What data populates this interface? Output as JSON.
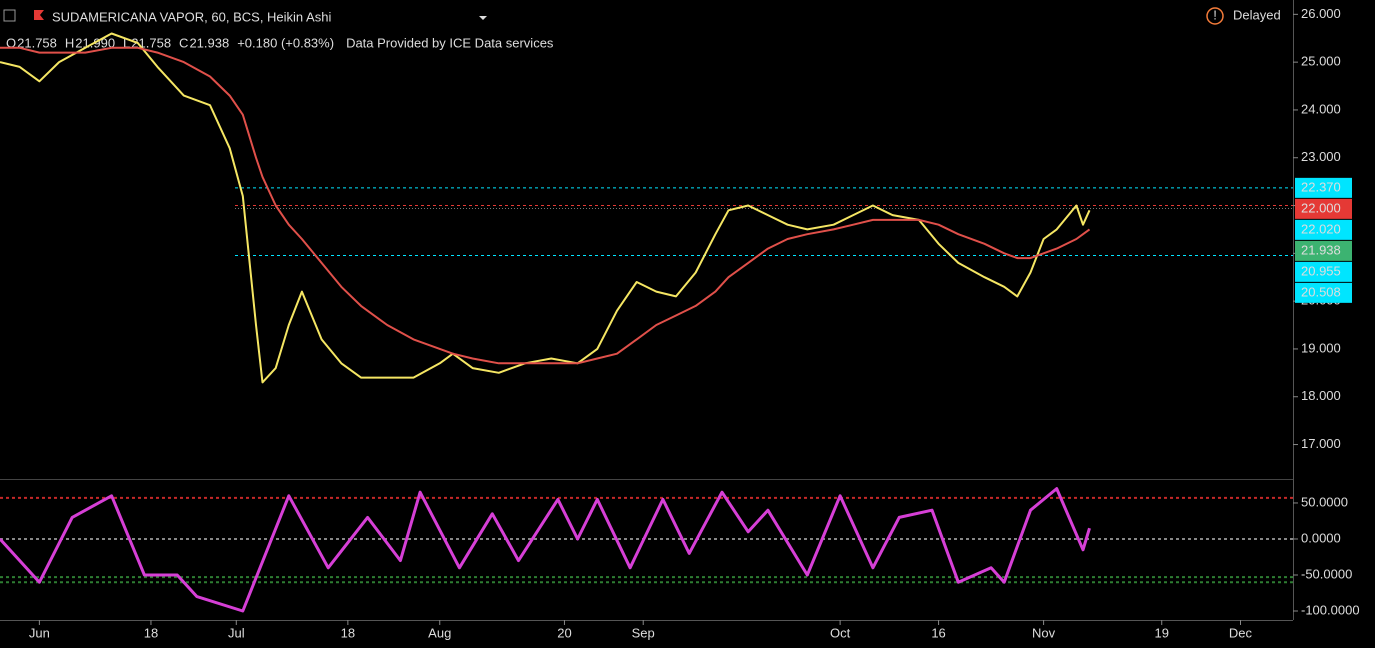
{
  "header": {
    "title": "SUDAMERICANA VAPOR, 60, BCS, Heikin Ashi",
    "ohlc": [
      {
        "key": "O",
        "value": "21.758"
      },
      {
        "key": "H",
        "value": "21.990"
      },
      {
        "key": "L",
        "value": "21.758"
      },
      {
        "key": "C",
        "value": "21.938"
      }
    ],
    "change": "+0.180 (+0.83%)",
    "source": "Data Provided by ICE Data services",
    "status": "Delayed"
  },
  "chart_data": [
    {
      "type": "line",
      "xlim": [
        -6,
        191
      ],
      "ylim": [
        16.3,
        26.3
      ],
      "xticks": [
        {
          "value": 0,
          "label": "Jun"
        },
        {
          "value": 17,
          "label": "18"
        },
        {
          "value": 30,
          "label": "Jul"
        },
        {
          "value": 47,
          "label": "18"
        },
        {
          "value": 61,
          "label": "Aug"
        },
        {
          "value": 80,
          "label": "20"
        },
        {
          "value": 92,
          "label": "Sep"
        },
        {
          "value": 122,
          "label": "Oct"
        },
        {
          "value": 137,
          "label": "16"
        },
        {
          "value": 153,
          "label": "Nov"
        },
        {
          "value": 171,
          "label": "19"
        },
        {
          "value": 183,
          "label": "Dec"
        }
      ],
      "yticks": [
        {
          "value": 17,
          "label": "17.000"
        },
        {
          "value": 18,
          "label": "18.000"
        },
        {
          "value": 19,
          "label": "19.000"
        },
        {
          "value": 20,
          "label": "20.000"
        },
        {
          "value": 21,
          "label": "21.000"
        },
        {
          "value": 22,
          "label": "22.000"
        },
        {
          "value": 23,
          "label": "23.000"
        },
        {
          "value": 24,
          "label": "24.000"
        },
        {
          "value": 25,
          "label": "25.000"
        },
        {
          "value": 26,
          "label": "26.000"
        }
      ],
      "x": [
        -6,
        -3,
        0,
        3,
        7,
        11,
        15,
        18,
        22,
        26,
        29,
        31,
        33,
        34,
        36,
        38,
        40,
        43,
        46,
        49,
        53,
        57,
        61,
        63,
        66,
        70,
        74,
        78,
        82,
        85,
        88,
        91,
        94,
        97,
        100,
        103,
        105,
        108,
        111,
        114,
        117,
        121,
        124,
        127,
        130,
        134,
        137,
        140,
        144,
        147,
        149,
        151,
        153,
        155,
        158,
        159,
        160
      ],
      "series": [
        {
          "color": "#f5e663",
          "values": [
            25.0,
            24.9,
            24.6,
            25.0,
            25.3,
            25.6,
            25.4,
            24.9,
            24.3,
            24.1,
            23.2,
            22.2,
            19.5,
            18.3,
            18.6,
            19.5,
            20.2,
            19.2,
            18.7,
            18.4,
            18.4,
            18.4,
            18.7,
            18.9,
            18.6,
            18.5,
            18.7,
            18.8,
            18.7,
            19.0,
            19.8,
            20.4,
            20.2,
            20.1,
            20.6,
            21.4,
            21.9,
            22.0,
            21.8,
            21.6,
            21.5,
            21.6,
            21.8,
            22.0,
            21.8,
            21.7,
            21.2,
            20.8,
            20.5,
            20.3,
            20.1,
            20.6,
            21.3,
            21.5,
            22.0,
            21.6,
            21.9
          ]
        },
        {
          "color": "#e0504a",
          "values": [
            25.3,
            25.3,
            25.2,
            25.2,
            25.2,
            25.3,
            25.3,
            25.2,
            25.0,
            24.7,
            24.3,
            23.9,
            23.0,
            22.6,
            22.0,
            21.6,
            21.3,
            20.8,
            20.3,
            19.9,
            19.5,
            19.2,
            19.0,
            18.9,
            18.8,
            18.7,
            18.7,
            18.7,
            18.7,
            18.8,
            18.9,
            19.2,
            19.5,
            19.7,
            19.9,
            20.2,
            20.5,
            20.8,
            21.1,
            21.3,
            21.4,
            21.5,
            21.6,
            21.7,
            21.7,
            21.7,
            21.6,
            21.4,
            21.2,
            21.0,
            20.9,
            20.9,
            21.0,
            21.1,
            21.3,
            21.4,
            21.5
          ]
        }
      ],
      "levels": [
        {
          "value": 22.37,
          "label": "22.370",
          "color": "#00e5ff",
          "line": "dashed"
        },
        {
          "value": 22.0,
          "label": "22.000",
          "color": "#e53935",
          "line": "dashed"
        },
        {
          "value": 22.02,
          "label": "22.020",
          "color": "#00e5ff"
        },
        {
          "value": 21.938,
          "label": "21.938",
          "color": "#3cb371",
          "line": "dotted"
        },
        {
          "value": 20.955,
          "label": "20.955",
          "color": "#00e5ff",
          "line": "dashed"
        },
        {
          "value": 20.508,
          "label": "20.508",
          "color": "#00e5ff"
        }
      ]
    },
    {
      "type": "line",
      "xlim": [
        -6,
        191
      ],
      "ylim": [
        -112.5,
        80.5
      ],
      "yticks": [
        {
          "value": 50,
          "label": "50.0000"
        },
        {
          "value": 0,
          "label": "0.0000"
        },
        {
          "value": -50,
          "label": "-50.0000"
        },
        {
          "value": -100,
          "label": "-100.0000"
        }
      ],
      "x": [
        -6,
        0,
        5,
        11,
        16,
        21,
        24,
        31,
        38,
        44,
        50,
        55,
        58,
        64,
        69,
        73,
        79,
        82,
        85,
        90,
        95,
        99,
        104,
        108,
        111,
        117,
        122,
        127,
        131,
        136,
        140,
        145,
        147,
        151,
        155,
        159,
        160
      ],
      "series": [
        {
          "color": "#d63fd6",
          "values": [
            0,
            -60,
            30,
            60,
            -50,
            -50,
            -80,
            -100,
            60,
            -40,
            30,
            -30,
            65,
            -40,
            35,
            -30,
            55,
            0,
            55,
            -40,
            55,
            -20,
            65,
            10,
            40,
            -50,
            60,
            -40,
            30,
            40,
            -60,
            -40,
            -60,
            40,
            70,
            -15,
            15
          ]
        }
      ],
      "levels": [
        {
          "value": 57,
          "color": "#c62828",
          "line": "dashed"
        },
        {
          "value": -53,
          "color": "#2e7d32",
          "line": "dashed"
        },
        {
          "value": -60,
          "color": "#2e7d32",
          "line": "dashed"
        },
        {
          "value": 0,
          "color": "#888888",
          "line": "dashed"
        }
      ]
    }
  ]
}
